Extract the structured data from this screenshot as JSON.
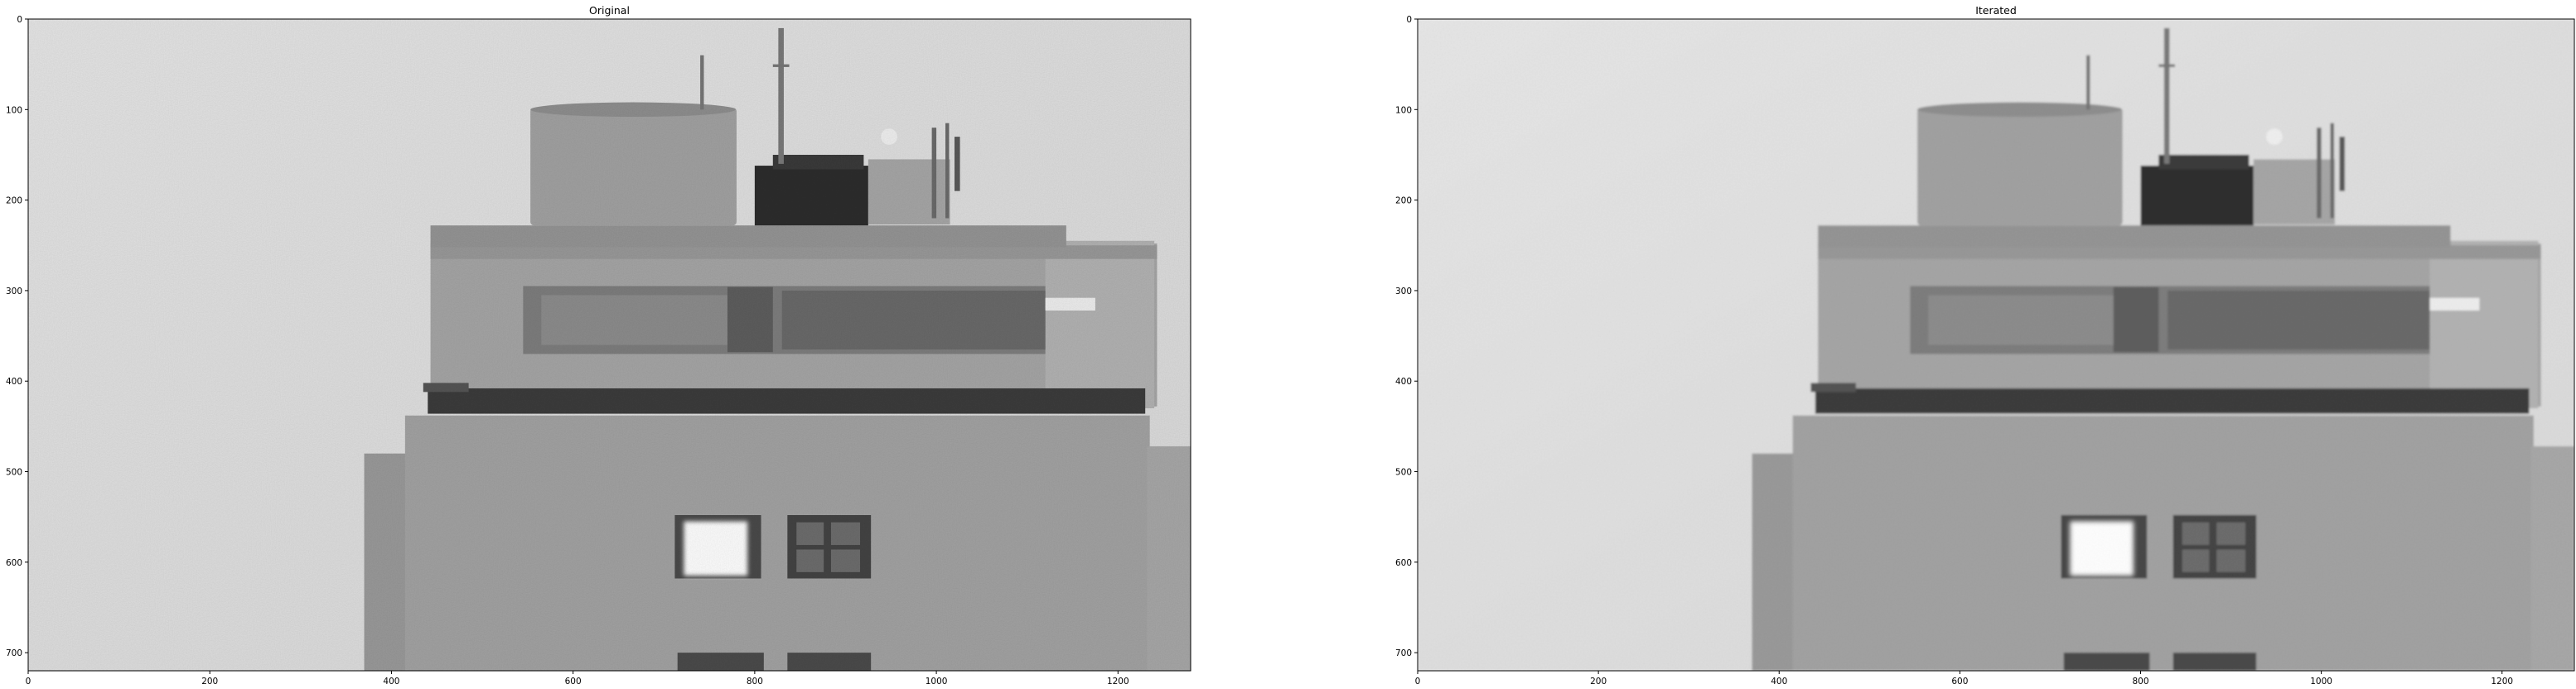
{
  "chart_data": [
    {
      "type": "image",
      "title": "Original",
      "xlim": [
        0,
        1280
      ],
      "ylim": [
        720,
        0
      ],
      "x_ticks": [
        0,
        200,
        400,
        600,
        800,
        1000,
        1200
      ],
      "y_ticks": [
        0,
        100,
        200,
        300,
        400,
        500,
        600,
        700
      ],
      "x_tick_labels": [
        "0",
        "200",
        "400",
        "600",
        "800",
        "1000",
        "1200"
      ],
      "y_tick_labels": [
        "0",
        "100",
        "200",
        "300",
        "400",
        "500",
        "600",
        "700"
      ],
      "colormap": "gray",
      "noise": "high"
    },
    {
      "type": "image",
      "title": "Iterated",
      "xlim": [
        0,
        1280
      ],
      "ylim": [
        720,
        0
      ],
      "x_ticks": [
        0,
        200,
        400,
        600,
        800,
        1000,
        1200
      ],
      "y_ticks": [
        0,
        100,
        200,
        300,
        400,
        500,
        600,
        700
      ],
      "x_tick_labels": [
        "0",
        "200",
        "400",
        "600",
        "800",
        "1000",
        "1200"
      ],
      "y_tick_labels": [
        "0",
        "100",
        "200",
        "300",
        "400",
        "500",
        "600",
        "700"
      ],
      "colormap": "gray",
      "noise": "low"
    }
  ],
  "colors": {
    "sky": "#dedede",
    "building_upper": "#a6a6a6",
    "building_lower": "#9a9a9a",
    "dark_band": "#3c3c3c",
    "window_bright": "#ffffff"
  }
}
